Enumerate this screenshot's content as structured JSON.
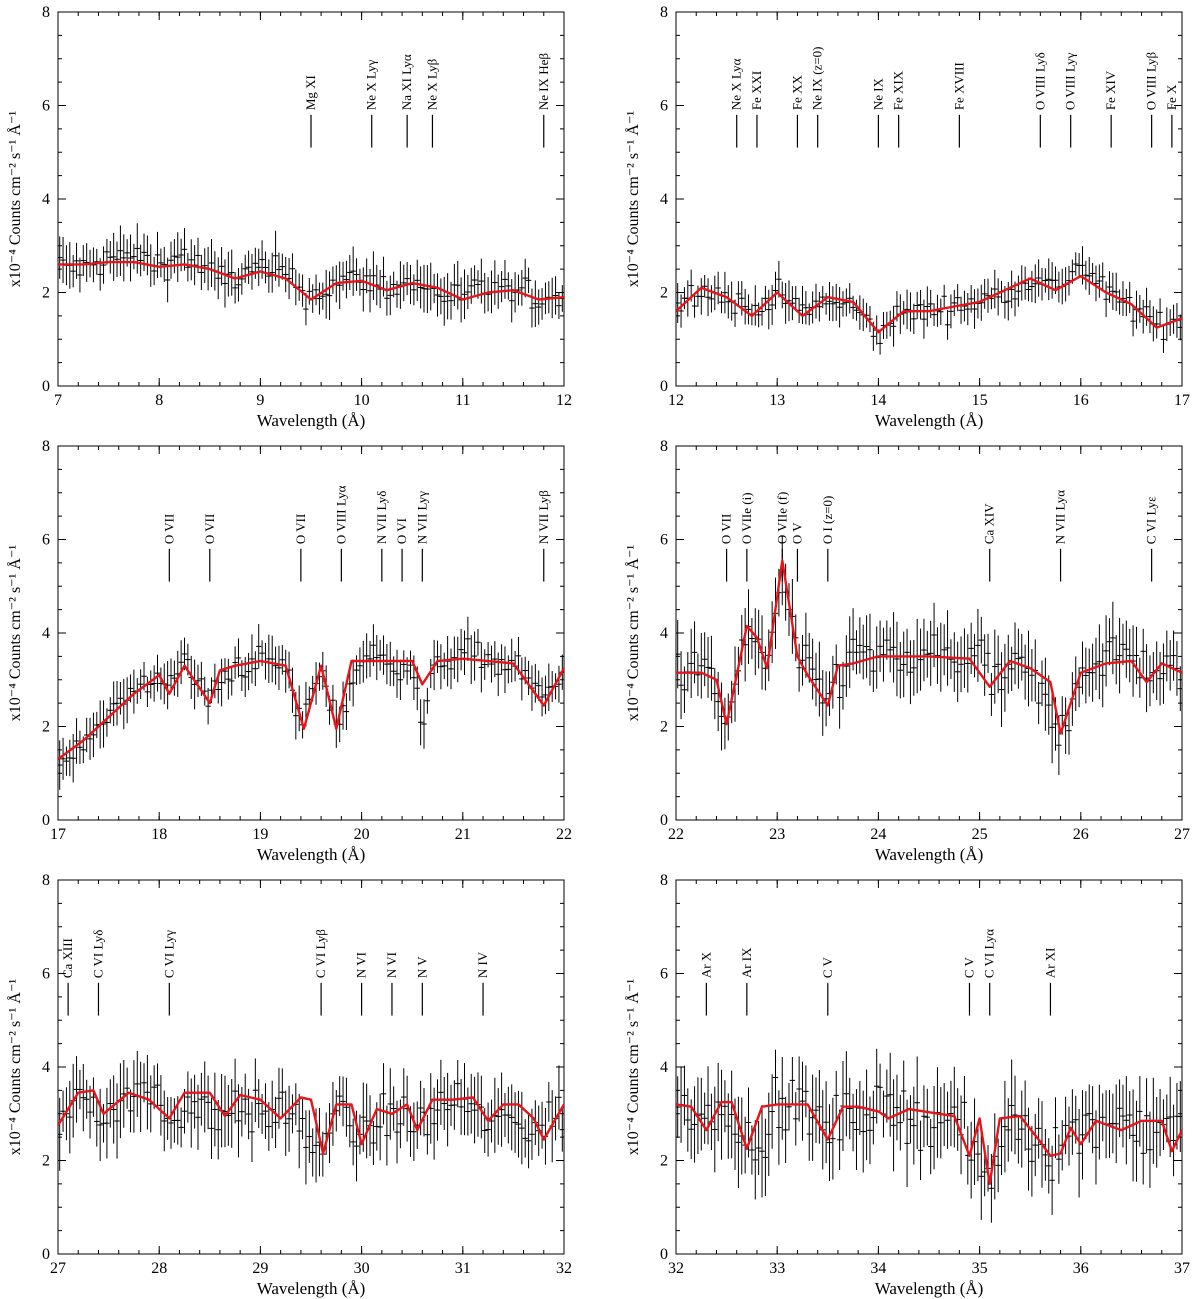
{
  "figure": {
    "ylabel": "x10⁻⁴ Counts cm⁻² s⁻¹ Å⁻¹",
    "xlabel": "Wavelength (Å)",
    "model_color": "#e8141b",
    "data_color": "#000000"
  },
  "chart_data": [
    {
      "type": "line",
      "title": "",
      "xlabel": "Wavelength (Å)",
      "ylabel": "x10⁻⁴ Counts cm⁻² s⁻¹ Å⁻¹",
      "xlim": [
        7,
        12
      ],
      "ylim": [
        0,
        8
      ],
      "xticks": [
        7,
        8,
        9,
        10,
        11,
        12
      ],
      "yticks": [
        0,
        2,
        4,
        6,
        8
      ],
      "series": [
        {
          "name": "data",
          "style": "crosses with error bars",
          "noise": 0.3,
          "x": [
            7.0,
            7.25,
            7.5,
            7.75,
            8.0,
            8.25,
            8.5,
            8.75,
            9.0,
            9.25,
            9.5,
            9.75,
            10.0,
            10.25,
            10.5,
            10.75,
            11.0,
            11.25,
            11.5,
            11.75,
            12.0
          ],
          "y": [
            2.6,
            2.5,
            2.7,
            2.8,
            2.6,
            2.8,
            2.4,
            2.3,
            2.5,
            2.4,
            1.9,
            2.2,
            2.3,
            2.1,
            2.2,
            2.0,
            1.9,
            2.1,
            2.0,
            1.9,
            1.9
          ]
        },
        {
          "name": "model",
          "x": [
            7.0,
            7.25,
            7.5,
            7.75,
            8.0,
            8.25,
            8.5,
            8.75,
            9.0,
            9.25,
            9.5,
            9.75,
            10.0,
            10.25,
            10.5,
            10.75,
            11.0,
            11.25,
            11.5,
            11.75,
            12.0
          ],
          "y": [
            2.6,
            2.6,
            2.65,
            2.65,
            2.55,
            2.6,
            2.5,
            2.3,
            2.45,
            2.3,
            1.85,
            2.2,
            2.25,
            2.05,
            2.2,
            2.1,
            1.85,
            2.0,
            2.05,
            1.85,
            1.9
          ]
        }
      ],
      "lines": [
        {
          "wl": 9.5,
          "label": "Mg XI"
        },
        {
          "wl": 10.1,
          "label": "Ne X Lyγ"
        },
        {
          "wl": 10.45,
          "label": "Na XI Lyα"
        },
        {
          "wl": 10.7,
          "label": "Ne X Lyβ"
        },
        {
          "wl": 11.8,
          "label": "Ne IX Heβ"
        }
      ]
    },
    {
      "type": "line",
      "title": "",
      "xlabel": "Wavelength (Å)",
      "ylabel": "x10⁻⁴ Counts cm⁻² s⁻¹ Å⁻¹",
      "xlim": [
        12,
        17
      ],
      "ylim": [
        0,
        8
      ],
      "xticks": [
        12,
        13,
        14,
        15,
        16,
        17
      ],
      "yticks": [
        0,
        2,
        4,
        6,
        8
      ],
      "series": [
        {
          "name": "data",
          "style": "crosses with error bars",
          "noise": 0.25,
          "x": [
            12.0,
            12.25,
            12.5,
            12.75,
            13.0,
            13.25,
            13.5,
            13.75,
            14.0,
            14.25,
            14.5,
            14.75,
            15.0,
            15.25,
            15.5,
            15.75,
            16.0,
            16.25,
            16.5,
            16.75,
            17.0
          ],
          "y": [
            1.7,
            2.1,
            1.9,
            1.6,
            2.0,
            1.6,
            1.8,
            1.7,
            1.1,
            1.6,
            1.6,
            1.7,
            1.8,
            2.0,
            2.3,
            2.1,
            2.6,
            2.0,
            1.7,
            1.3,
            1.4
          ]
        },
        {
          "name": "model",
          "x": [
            12.0,
            12.25,
            12.5,
            12.75,
            13.0,
            13.25,
            13.5,
            13.75,
            14.0,
            14.25,
            14.5,
            14.75,
            15.0,
            15.25,
            15.5,
            15.75,
            16.0,
            16.25,
            16.5,
            16.75,
            17.0
          ],
          "y": [
            1.6,
            2.1,
            1.9,
            1.5,
            2.0,
            1.5,
            1.9,
            1.8,
            1.15,
            1.6,
            1.6,
            1.7,
            1.8,
            2.05,
            2.3,
            2.05,
            2.35,
            2.0,
            1.75,
            1.25,
            1.45
          ]
        }
      ],
      "lines": [
        {
          "wl": 12.6,
          "label": "Ne X Lyα"
        },
        {
          "wl": 12.8,
          "label": "Fe XXI"
        },
        {
          "wl": 13.2,
          "label": "Fe XX"
        },
        {
          "wl": 13.4,
          "label": "Ne IX (z=0)"
        },
        {
          "wl": 14.0,
          "label": "Ne IX"
        },
        {
          "wl": 14.2,
          "label": "Fe XIX"
        },
        {
          "wl": 14.8,
          "label": "Fe XVIII"
        },
        {
          "wl": 15.6,
          "label": "O VIII Lyδ"
        },
        {
          "wl": 15.9,
          "label": "O VIII Lyγ"
        },
        {
          "wl": 16.3,
          "label": "Fe XIV"
        },
        {
          "wl": 16.7,
          "label": "O VIII Lyβ"
        },
        {
          "wl": 16.9,
          "label": "Fe X"
        }
      ]
    },
    {
      "type": "line",
      "title": "",
      "xlabel": "Wavelength (Å)",
      "ylabel": "x10⁻⁴ Counts cm⁻² s⁻¹ Å⁻¹",
      "xlim": [
        17,
        22
      ],
      "ylim": [
        0,
        8
      ],
      "xticks": [
        17,
        18,
        19,
        20,
        21,
        22
      ],
      "yticks": [
        0,
        2,
        4,
        6,
        8
      ],
      "series": [
        {
          "name": "data",
          "style": "crosses with error bars",
          "noise": 0.3,
          "x": [
            17.0,
            17.25,
            17.5,
            17.75,
            18.0,
            18.25,
            18.5,
            18.75,
            19.0,
            19.25,
            19.4,
            19.6,
            19.75,
            20.0,
            20.25,
            20.5,
            20.6,
            20.75,
            21.0,
            21.25,
            21.5,
            21.8,
            22.0
          ],
          "y": [
            1.2,
            1.7,
            2.3,
            2.7,
            3.0,
            3.3,
            2.6,
            3.3,
            3.4,
            3.3,
            2.0,
            3.3,
            2.0,
            3.5,
            3.4,
            3.3,
            2.0,
            3.4,
            3.6,
            3.4,
            3.3,
            2.6,
            3.2
          ]
        },
        {
          "name": "model",
          "x": [
            17.0,
            17.25,
            17.5,
            17.75,
            18.0,
            18.1,
            18.25,
            18.5,
            18.6,
            18.75,
            19.0,
            19.25,
            19.43,
            19.6,
            19.75,
            19.9,
            20.25,
            20.5,
            20.6,
            20.75,
            21.0,
            21.5,
            21.8,
            22.0
          ],
          "y": [
            1.3,
            1.7,
            2.2,
            2.7,
            3.1,
            2.7,
            3.3,
            2.5,
            3.2,
            3.3,
            3.4,
            3.3,
            1.95,
            3.3,
            1.95,
            3.4,
            3.4,
            3.4,
            2.9,
            3.4,
            3.45,
            3.35,
            2.45,
            3.25
          ]
        }
      ],
      "lines": [
        {
          "wl": 18.1,
          "label": "O VII"
        },
        {
          "wl": 18.5,
          "label": "O VII"
        },
        {
          "wl": 19.4,
          "label": "O VII"
        },
        {
          "wl": 19.8,
          "label": "O VIII Lyα"
        },
        {
          "wl": 20.2,
          "label": "N VII Lyδ"
        },
        {
          "wl": 20.4,
          "label": "O VI"
        },
        {
          "wl": 20.6,
          "label": "N VII Lyγ"
        },
        {
          "wl": 21.8,
          "label": "N VII Lyβ"
        }
      ]
    },
    {
      "type": "line",
      "title": "",
      "xlabel": "Wavelength (Å)",
      "ylabel": "x10⁻⁴ Counts cm⁻² s⁻¹ Å⁻¹",
      "xlim": [
        22,
        27
      ],
      "ylim": [
        0,
        8
      ],
      "xticks": [
        22,
        23,
        24,
        25,
        26,
        27
      ],
      "yticks": [
        0,
        2,
        4,
        6,
        8
      ],
      "series": [
        {
          "name": "data",
          "style": "crosses with error bars",
          "noise": 0.45,
          "x": [
            22.0,
            22.25,
            22.5,
            22.7,
            22.9,
            23.05,
            23.2,
            23.5,
            23.75,
            24.0,
            24.25,
            24.5,
            24.75,
            25.0,
            25.1,
            25.3,
            25.5,
            25.8,
            26.0,
            26.25,
            26.5,
            26.75,
            27.0
          ],
          "y": [
            3.1,
            3.4,
            2.0,
            4.1,
            3.3,
            5.3,
            3.4,
            2.6,
            3.6,
            3.5,
            3.3,
            3.6,
            3.4,
            3.7,
            2.8,
            3.3,
            3.1,
            1.8,
            3.2,
            3.5,
            3.6,
            3.0,
            3.2
          ]
        },
        {
          "name": "model",
          "x": [
            22.0,
            22.25,
            22.4,
            22.5,
            22.6,
            22.7,
            22.8,
            22.9,
            23.05,
            23.2,
            23.3,
            23.5,
            23.6,
            23.75,
            24.0,
            24.5,
            24.9,
            25.1,
            25.3,
            25.5,
            25.7,
            25.8,
            26.0,
            26.25,
            26.5,
            26.65,
            26.8,
            27.0
          ],
          "y": [
            3.15,
            3.15,
            3.0,
            2.05,
            3.1,
            4.15,
            3.9,
            3.25,
            5.55,
            3.5,
            3.1,
            2.45,
            3.3,
            3.35,
            3.5,
            3.5,
            3.45,
            2.85,
            3.4,
            3.25,
            2.95,
            1.85,
            3.15,
            3.35,
            3.4,
            2.95,
            3.35,
            3.15
          ]
        }
      ],
      "lines": [
        {
          "wl": 22.5,
          "label": "O VII"
        },
        {
          "wl": 22.7,
          "label": "O VIIe (i)"
        },
        {
          "wl": 23.05,
          "label": "O VIIe (f)"
        },
        {
          "wl": 23.2,
          "label": "O V"
        },
        {
          "wl": 23.5,
          "label": "O I (z=0)"
        },
        {
          "wl": 25.1,
          "label": "Ca XIV"
        },
        {
          "wl": 25.8,
          "label": "N VII Lyα"
        },
        {
          "wl": 26.7,
          "label": "C VI Lyε"
        }
      ]
    },
    {
      "type": "line",
      "title": "",
      "xlabel": "Wavelength (Å)",
      "ylabel": "x10⁻⁴ Counts cm⁻² s⁻¹ Å⁻¹",
      "xlim": [
        27,
        32
      ],
      "ylim": [
        0,
        8
      ],
      "xticks": [
        27,
        28,
        29,
        30,
        31,
        32
      ],
      "yticks": [
        0,
        2,
        4,
        6,
        8
      ],
      "series": [
        {
          "name": "data",
          "style": "crosses with error bars",
          "noise": 0.45,
          "x": [
            27.0,
            27.2,
            27.4,
            27.7,
            28.0,
            28.1,
            28.3,
            28.5,
            28.8,
            29.0,
            29.3,
            29.6,
            29.8,
            30.0,
            30.3,
            30.55,
            30.8,
            31.0,
            31.2,
            31.5,
            31.75,
            32.0
          ],
          "y": [
            2.6,
            3.5,
            3.0,
            3.4,
            3.4,
            2.7,
            3.3,
            3.0,
            3.2,
            2.9,
            3.1,
            2.1,
            3.2,
            2.4,
            3.1,
            2.7,
            3.2,
            3.3,
            2.8,
            2.9,
            2.6,
            3.1
          ]
        },
        {
          "name": "model",
          "x": [
            27.0,
            27.2,
            27.35,
            27.45,
            27.7,
            27.9,
            28.1,
            28.25,
            28.5,
            28.65,
            28.8,
            29.0,
            29.2,
            29.4,
            29.5,
            29.62,
            29.75,
            29.9,
            30.0,
            30.15,
            30.3,
            30.45,
            30.55,
            30.7,
            30.9,
            31.1,
            31.25,
            31.4,
            31.55,
            31.7,
            31.8,
            32.0
          ],
          "y": [
            2.75,
            3.45,
            3.5,
            3.0,
            3.45,
            3.3,
            2.9,
            3.45,
            3.45,
            2.95,
            3.4,
            3.3,
            2.9,
            3.35,
            3.3,
            2.15,
            3.2,
            3.2,
            2.35,
            3.1,
            3.0,
            3.2,
            2.65,
            3.3,
            3.3,
            3.35,
            2.85,
            3.2,
            3.2,
            2.9,
            2.45,
            3.2
          ]
        }
      ],
      "lines": [
        {
          "wl": 27.1,
          "label": "Ca XIII"
        },
        {
          "wl": 27.4,
          "label": "C VI Lyδ"
        },
        {
          "wl": 28.1,
          "label": "C VI Lyγ"
        },
        {
          "wl": 29.6,
          "label": "C VI Lyβ"
        },
        {
          "wl": 30.0,
          "label": "N VI"
        },
        {
          "wl": 30.3,
          "label": "N VI"
        },
        {
          "wl": 30.6,
          "label": "N V"
        },
        {
          "wl": 31.2,
          "label": "N IV"
        }
      ]
    },
    {
      "type": "line",
      "title": "",
      "xlabel": "Wavelength (Å)",
      "ylabel": "x10⁻⁴ Counts cm⁻² s⁻¹ Å⁻¹",
      "xlim": [
        32,
        37
      ],
      "ylim": [
        0,
        8
      ],
      "xticks": [
        32,
        33,
        34,
        35,
        36,
        37
      ],
      "yticks": [
        0,
        2,
        4,
        6,
        8
      ],
      "series": [
        {
          "name": "data",
          "style": "crosses with error bars",
          "noise": 0.55,
          "x": [
            32.0,
            32.25,
            32.5,
            32.7,
            33.0,
            33.25,
            33.5,
            33.75,
            34.0,
            34.25,
            34.5,
            34.75,
            34.9,
            35.1,
            35.3,
            35.5,
            35.7,
            35.9,
            36.1,
            36.4,
            36.6,
            36.8,
            37.0
          ],
          "y": [
            3.2,
            2.8,
            3.4,
            2.3,
            3.0,
            3.2,
            2.6,
            3.1,
            3.0,
            3.1,
            2.8,
            3.0,
            2.2,
            1.5,
            3.0,
            2.6,
            2.2,
            2.5,
            2.8,
            3.0,
            2.6,
            2.9,
            2.6
          ]
        },
        {
          "name": "model",
          "x": [
            32.0,
            32.15,
            32.3,
            32.45,
            32.55,
            32.7,
            32.85,
            33.0,
            33.3,
            33.5,
            33.65,
            33.8,
            34.0,
            34.1,
            34.3,
            34.6,
            34.75,
            34.9,
            35.0,
            35.1,
            35.2,
            35.4,
            35.6,
            35.7,
            35.8,
            35.9,
            36.0,
            36.15,
            36.4,
            36.6,
            36.8,
            36.9,
            37.0
          ],
          "y": [
            3.2,
            3.15,
            2.65,
            3.25,
            3.25,
            2.25,
            3.15,
            3.2,
            3.2,
            2.45,
            3.15,
            3.15,
            3.05,
            2.9,
            3.1,
            3.0,
            2.95,
            2.1,
            2.9,
            1.5,
            2.9,
            2.95,
            2.4,
            2.1,
            2.15,
            2.7,
            2.35,
            2.85,
            2.65,
            2.85,
            2.85,
            2.2,
            2.65
          ]
        }
      ],
      "lines": [
        {
          "wl": 32.3,
          "label": "Ar X"
        },
        {
          "wl": 32.7,
          "label": "Ar IX"
        },
        {
          "wl": 33.5,
          "label": "C V"
        },
        {
          "wl": 34.9,
          "label": "C V"
        },
        {
          "wl": 35.1,
          "label": "C VI Lyα"
        },
        {
          "wl": 35.7,
          "label": "Ar XI"
        }
      ]
    }
  ]
}
